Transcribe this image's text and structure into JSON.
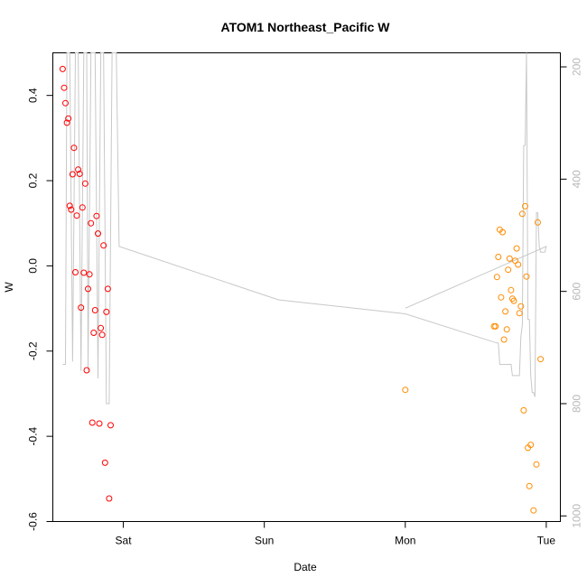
{
  "chart_data": {
    "type": "scatter",
    "title": "ATOM1 Northeast_Pacific W",
    "xlabel": "Date",
    "ylabel": "W",
    "x_ticks": [
      {
        "label": "Sat",
        "t": 1.0
      },
      {
        "label": "Sun",
        "t": 2.0
      },
      {
        "label": "Mon",
        "t": 3.0
      },
      {
        "label": "Tue",
        "t": 4.0
      }
    ],
    "xlim": [
      0.5,
      4.1
    ],
    "ylim": [
      -0.6,
      0.5
    ],
    "y_ticks": [
      -0.6,
      -0.4,
      -0.2,
      0.0,
      0.2,
      0.4
    ],
    "y_tick_labels": [
      "-0.6",
      "-0.4",
      "-0.2",
      "0.0",
      "0.2",
      "0.4"
    ],
    "right_axis": {
      "label": "",
      "reversed": true,
      "ylim": [
        1010,
        175
      ],
      "ticks": [
        200,
        400,
        600,
        800,
        1000
      ],
      "tick_labels": [
        "200",
        "400",
        "600",
        "800",
        "1000"
      ],
      "color": "#b8b8b8"
    },
    "x_note": "x values are days; Fri 00:00 = 0, Sat 00:00 = 1, Sun 00:00 = 2, Mon 00:00 = 3, Tue 00:00 = 4",
    "series": [
      {
        "name": "",
        "marker": "open-circle",
        "color": "#ff0000",
        "points": [
          [
            0.57,
            0.462
          ],
          [
            0.58,
            0.418
          ],
          [
            0.59,
            0.382
          ],
          [
            0.6,
            0.336
          ],
          [
            0.61,
            0.346
          ],
          [
            0.62,
            0.141
          ],
          [
            0.63,
            0.132
          ],
          [
            0.64,
            0.215
          ],
          [
            0.65,
            0.277
          ],
          [
            0.66,
            -0.015
          ],
          [
            0.67,
            0.118
          ],
          [
            0.68,
            0.226
          ],
          [
            0.69,
            0.216
          ],
          [
            0.7,
            -0.098
          ],
          [
            0.71,
            0.137
          ],
          [
            0.72,
            -0.016
          ],
          [
            0.73,
            0.193
          ],
          [
            0.74,
            -0.245
          ],
          [
            0.75,
            -0.054
          ],
          [
            0.76,
            -0.02
          ],
          [
            0.77,
            0.1
          ],
          [
            0.78,
            -0.368
          ],
          [
            0.79,
            -0.157
          ],
          [
            0.8,
            -0.104
          ],
          [
            0.81,
            0.117
          ],
          [
            0.82,
            0.076
          ],
          [
            0.83,
            -0.37
          ],
          [
            0.84,
            -0.146
          ],
          [
            0.85,
            -0.162
          ],
          [
            0.86,
            0.048
          ],
          [
            0.87,
            -0.462
          ],
          [
            0.88,
            -0.108
          ],
          [
            0.89,
            -0.054
          ],
          [
            0.9,
            -0.546
          ],
          [
            0.91,
            -0.374
          ]
        ]
      },
      {
        "name": "",
        "marker": "open-circle",
        "color": "#ff8c00",
        "points": [
          [
            3.0,
            -0.291
          ],
          [
            3.63,
            -0.142
          ],
          [
            3.64,
            -0.142
          ],
          [
            3.65,
            -0.026
          ],
          [
            3.66,
            0.021
          ],
          [
            3.67,
            0.085
          ],
          [
            3.68,
            -0.074
          ],
          [
            3.69,
            0.079
          ],
          [
            3.7,
            -0.173
          ],
          [
            3.71,
            -0.107
          ],
          [
            3.72,
            -0.149
          ],
          [
            3.73,
            -0.009
          ],
          [
            3.74,
            0.017
          ],
          [
            3.75,
            -0.057
          ],
          [
            3.76,
            -0.077
          ],
          [
            3.77,
            -0.082
          ],
          [
            3.78,
            0.012
          ],
          [
            3.79,
            0.041
          ],
          [
            3.8,
            0.003
          ],
          [
            3.81,
            -0.111
          ],
          [
            3.82,
            -0.095
          ],
          [
            3.83,
            0.122
          ],
          [
            3.84,
            -0.339
          ],
          [
            3.85,
            0.14
          ],
          [
            3.86,
            -0.025
          ],
          [
            3.87,
            -0.427
          ],
          [
            3.88,
            -0.517
          ],
          [
            3.89,
            -0.42
          ],
          [
            3.91,
            -0.574
          ],
          [
            3.93,
            -0.466
          ],
          [
            3.94,
            0.102
          ],
          [
            3.96,
            -0.219
          ]
        ]
      },
      {
        "name": "",
        "type": "line",
        "color": "#c8c8c8",
        "axis": "right",
        "points": [
          [
            0.57,
            730
          ],
          [
            0.59,
            730
          ],
          [
            0.6,
            175
          ],
          [
            0.61,
            175
          ],
          [
            0.62,
            175
          ],
          [
            0.64,
            725
          ],
          [
            0.66,
            175
          ],
          [
            0.67,
            175
          ],
          [
            0.68,
            175
          ],
          [
            0.7,
            742
          ],
          [
            0.72,
            175
          ],
          [
            0.74,
            175
          ],
          [
            0.75,
            742
          ],
          [
            0.77,
            175
          ],
          [
            0.78,
            175
          ],
          [
            0.8,
            175
          ],
          [
            0.82,
            755
          ],
          [
            0.84,
            175
          ],
          [
            0.86,
            175
          ],
          [
            0.88,
            800
          ],
          [
            0.9,
            800
          ],
          [
            0.92,
            175
          ],
          [
            0.93,
            175
          ],
          [
            0.95,
            175
          ],
          [
            0.97,
            520
          ],
          [
            2.1,
            615
          ],
          [
            3.0,
            640
          ],
          [
            3.65,
            692
          ],
          [
            3.66,
            692
          ],
          [
            3.67,
            730
          ],
          [
            3.75,
            730
          ],
          [
            3.76,
            750
          ],
          [
            3.77,
            750
          ],
          [
            3.8,
            750
          ],
          [
            3.81,
            750
          ],
          [
            3.82,
            680
          ],
          [
            3.83,
            660
          ],
          [
            3.84,
            340
          ],
          [
            3.85,
            340
          ],
          [
            3.86,
            175
          ],
          [
            3.87,
            650
          ],
          [
            3.88,
            650
          ],
          [
            3.89,
            750
          ],
          [
            3.9,
            780
          ],
          [
            3.91,
            780
          ],
          [
            3.92,
            788
          ],
          [
            3.93,
            460
          ],
          [
            3.94,
            460
          ],
          [
            3.95,
            520
          ],
          [
            3.96,
            530
          ],
          [
            3.97,
            530
          ],
          [
            3.99,
            530
          ],
          [
            4.0,
            520
          ],
          [
            3.0,
            630
          ]
        ]
      }
    ],
    "grid": false,
    "legend": "none"
  }
}
